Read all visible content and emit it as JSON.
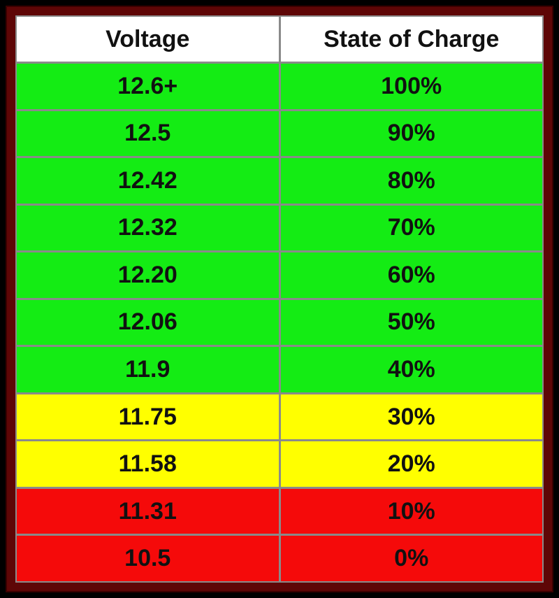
{
  "table": {
    "columns": [
      "Voltage",
      "State of Charge"
    ],
    "rows": [
      {
        "voltage": "12.6+",
        "charge": "100%",
        "color": "#14ec14"
      },
      {
        "voltage": "12.5",
        "charge": "90%",
        "color": "#14ec14"
      },
      {
        "voltage": "12.42",
        "charge": "80%",
        "color": "#14ec14"
      },
      {
        "voltage": "12.32",
        "charge": "70%",
        "color": "#14ec14"
      },
      {
        "voltage": "12.20",
        "charge": "60%",
        "color": "#14ec14"
      },
      {
        "voltage": "12.06",
        "charge": "50%",
        "color": "#14ec14"
      },
      {
        "voltage": "11.9",
        "charge": "40%",
        "color": "#14ec14"
      },
      {
        "voltage": "11.75",
        "charge": "30%",
        "color": "#ffff00"
      },
      {
        "voltage": "11.58",
        "charge": "20%",
        "color": "#ffff00"
      },
      {
        "voltage": "11.31",
        "charge": "10%",
        "color": "#f50a0a"
      },
      {
        "voltage": "10.5",
        "charge": "0%",
        "color": "#f50a0a"
      }
    ]
  }
}
